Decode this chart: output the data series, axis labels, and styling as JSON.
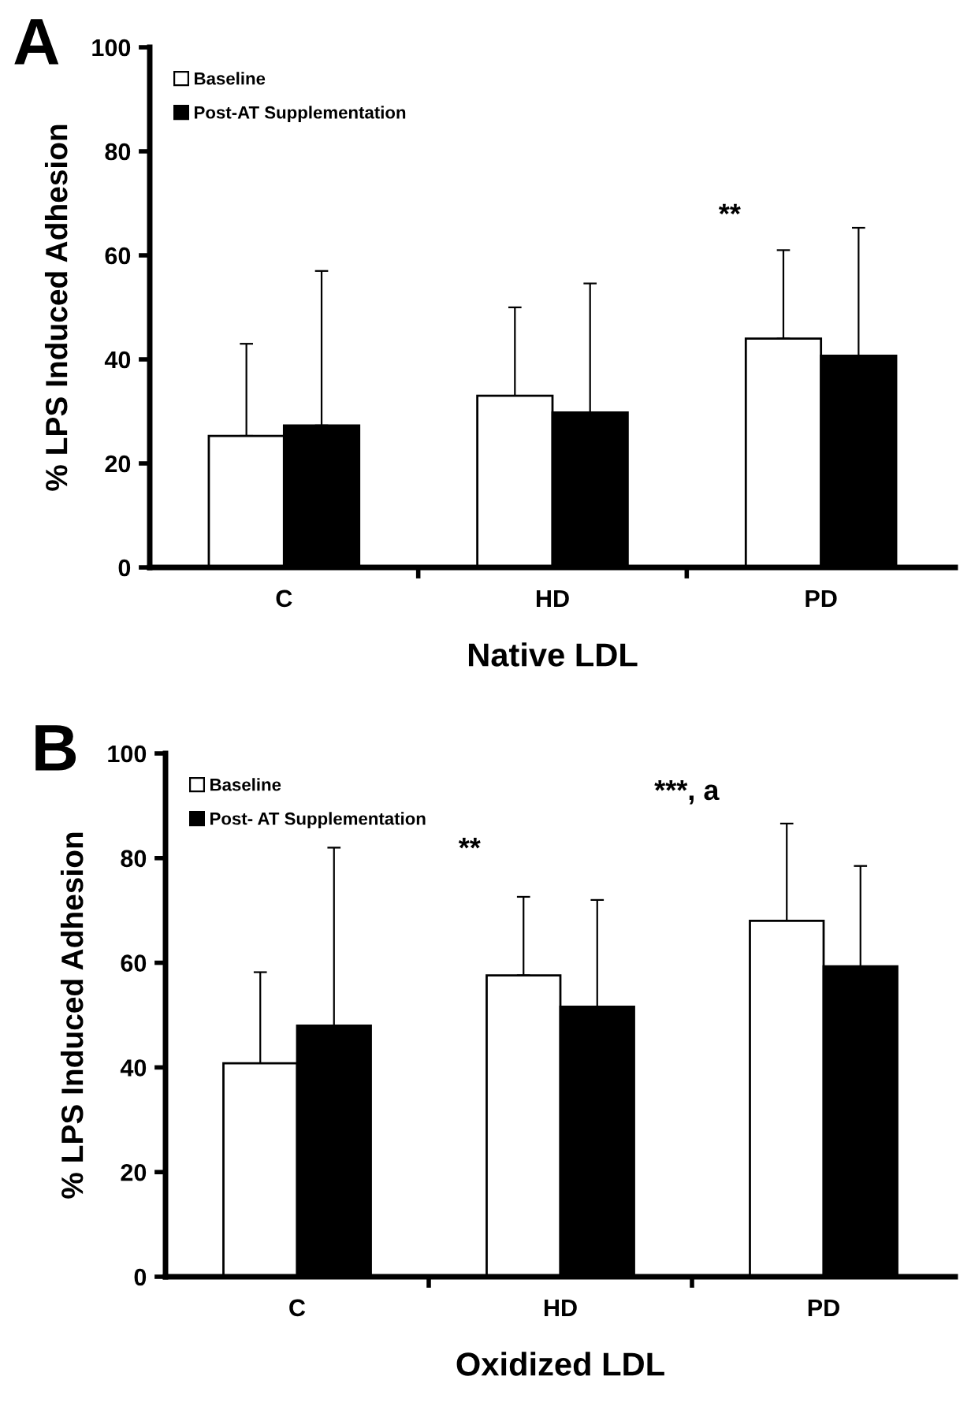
{
  "chart_data": [
    {
      "type": "bar",
      "title": "A",
      "xlabel": "Native LDL",
      "ylabel": "% LPS Induced Adhesion",
      "categories": [
        "C",
        "HD",
        "PD"
      ],
      "series": [
        {
          "name": "Baseline",
          "color": "#ffffff",
          "values": [
            25.3,
            33,
            44
          ],
          "errors": [
            [
              25.3,
              43
            ],
            [
              33,
              50
            ],
            [
              44,
              61
            ]
          ]
        },
        {
          "name": "Post-AT Supplementation",
          "color": "#000000",
          "values": [
            27.3,
            29.8,
            40.7
          ],
          "errors": [
            [
              27.3,
              57
            ],
            [
              29.8,
              54.6
            ],
            [
              40.7,
              65.3
            ]
          ]
        }
      ],
      "ylim": [
        0,
        100
      ],
      "yticks": [
        0,
        20,
        40,
        60,
        80,
        100
      ],
      "grid": false,
      "legend": "top left",
      "annotations": [
        "**"
      ]
    },
    {
      "type": "bar",
      "title": "B",
      "xlabel": "Oxidized LDL",
      "ylabel": "% LPS Induced Adhesion",
      "categories": [
        "C",
        "HD",
        "PD"
      ],
      "series": [
        {
          "name": "Baseline",
          "color": "#ffffff",
          "values": [
            40.8,
            57.6,
            68
          ],
          "errors": [
            [
              40.8,
              58.2
            ],
            [
              57.6,
              72.6
            ],
            [
              68,
              86.6
            ]
          ]
        },
        {
          "name": "Post- AT Supplementation",
          "color": "#000000",
          "values": [
            48,
            51.6,
            59.3
          ],
          "errors": [
            [
              48,
              82
            ],
            [
              51.6,
              72
            ],
            [
              59.3,
              78.5
            ]
          ]
        }
      ],
      "ylim": [
        0,
        100
      ],
      "yticks": [
        0,
        20,
        40,
        60,
        80,
        100
      ],
      "grid": false,
      "legend": "top left",
      "annotations": [
        "**",
        "***, a"
      ]
    }
  ]
}
